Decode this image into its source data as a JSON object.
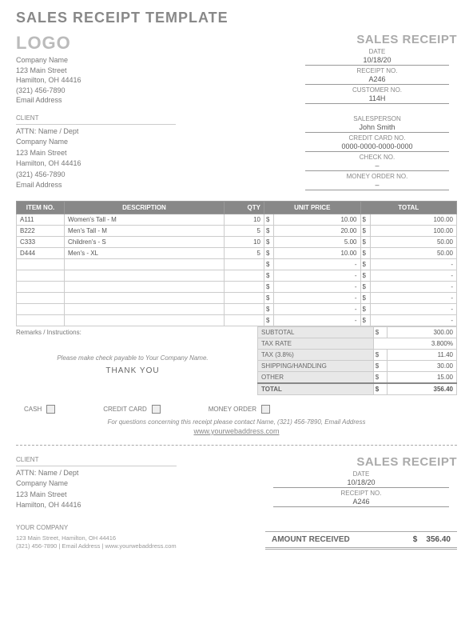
{
  "page_title": "SALES RECEIPT TEMPLATE",
  "logo_text": "LOGO",
  "header_text": "SALES RECEIPT",
  "company": {
    "name": "Company Name",
    "address1": "123 Main Street",
    "address2": "Hamilton, OH  44416",
    "phone": "(321) 456-7890",
    "email": "Email Address"
  },
  "meta": {
    "date_label": "DATE",
    "date": "10/18/20",
    "receipt_label": "RECEIPT NO.",
    "receipt": "A246",
    "customer_label": "CUSTOMER NO.",
    "customer": "114H"
  },
  "client_label": "CLIENT",
  "client": {
    "attn": "ATTN: Name / Dept",
    "name": "Company Name",
    "address1": "123 Main Street",
    "address2": "Hamilton, OH  44416",
    "phone": "(321) 456-7890",
    "email": "Email Address"
  },
  "sales_meta": {
    "salesperson_label": "SALESPERSON",
    "salesperson": "John Smith",
    "cc_label": "CREDIT CARD NO.",
    "cc": "0000-0000-0000-0000",
    "check_label": "CHECK NO.",
    "check": "–",
    "mo_label": "MONEY ORDER NO.",
    "mo": "–"
  },
  "table": {
    "columns": [
      "ITEM NO.",
      "DESCRIPTION",
      "QTY",
      "UNIT PRICE",
      "TOTAL"
    ],
    "rows": [
      {
        "item": "A111",
        "desc": "Women's Tall - M",
        "qty": "10",
        "price": "10.00",
        "total": "100.00"
      },
      {
        "item": "B222",
        "desc": "Men's Tall - M",
        "qty": "5",
        "price": "20.00",
        "total": "100.00"
      },
      {
        "item": "C333",
        "desc": "Children's - S",
        "qty": "10",
        "price": "5.00",
        "total": "50.00"
      },
      {
        "item": "D444",
        "desc": "Men's - XL",
        "qty": "5",
        "price": "10.00",
        "total": "50.00"
      }
    ],
    "empty_rows": 6,
    "currency": "$"
  },
  "remarks_label": "Remarks / Instructions:",
  "totals": {
    "subtotal_label": "SUBTOTAL",
    "subtotal": "300.00",
    "taxrate_label": "TAX RATE",
    "taxrate": "3.800%",
    "tax_label": "TAX (3.8%)",
    "tax": "11.40",
    "ship_label": "SHIPPING/HANDLING",
    "ship": "30.00",
    "other_label": "OTHER",
    "other": "15.00",
    "total_label": "TOTAL",
    "total": "356.40"
  },
  "payable_text": "Please make check payable to Your Company Name.",
  "thankyou": "THANK YOU",
  "pay_methods": {
    "cash": "CASH",
    "cc": "CREDIT CARD",
    "mo": "MONEY ORDER"
  },
  "contact_text": "For questions concerning this receipt please contact Name, (321) 456-7890, Email Address",
  "web": "www.yourwebaddress.com",
  "stub": {
    "client_label": "CLIENT",
    "attn": "ATTN: Name / Dept",
    "name": "Company Name",
    "address1": "123 Main Street",
    "address2": "Hamilton, OH  44416",
    "your_label": "YOUR COMPANY",
    "your_addr": "123 Main Street, Hamilton, OH  44416",
    "your_contact": "(321) 456-7890  |  Email Address  |  www.yourwebaddress.com",
    "header": "SALES RECEIPT",
    "date_label": "DATE",
    "date": "10/18/20",
    "receipt_label": "RECEIPT NO.",
    "receipt": "A246",
    "amt_label": "AMOUNT RECEIVED",
    "amt_currency": "$",
    "amt": "356.40"
  }
}
